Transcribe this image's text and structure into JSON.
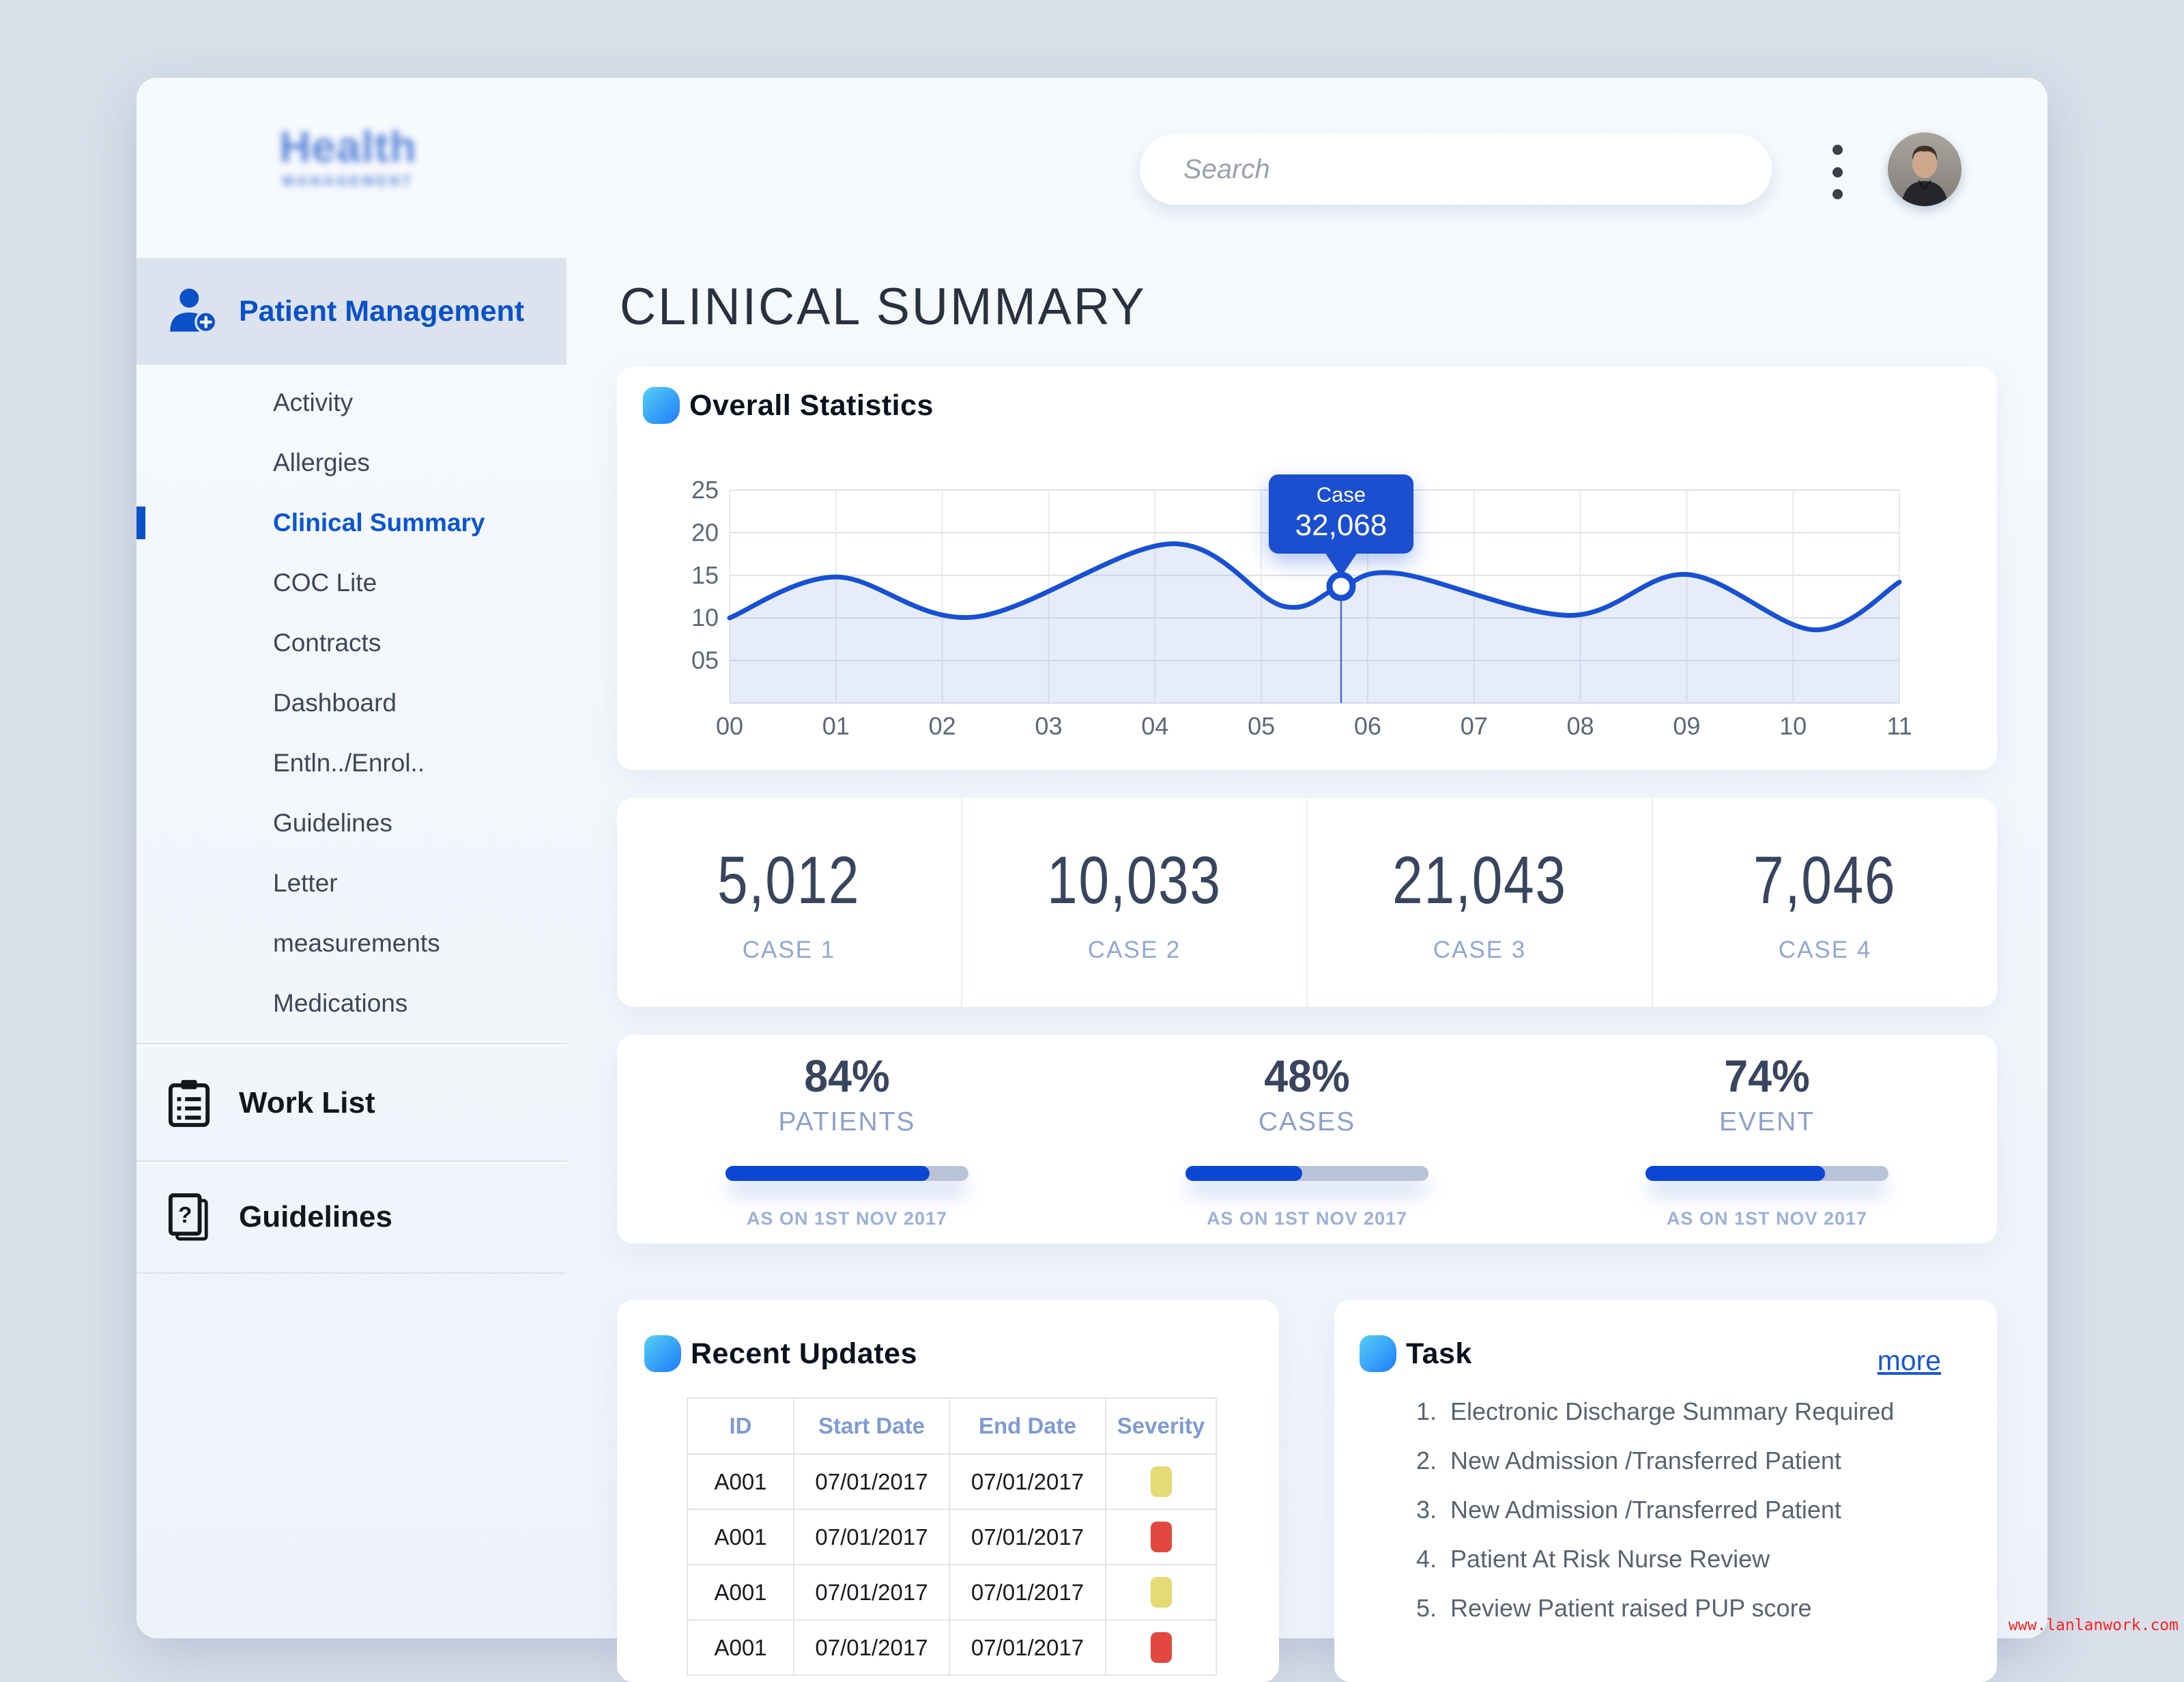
{
  "header": {
    "logo_line1": "Health",
    "logo_line2": "MANAGEMENT",
    "search_placeholder": "Search"
  },
  "sidebar": {
    "primary_label": "Patient Management",
    "items": [
      "Activity",
      "Allergies",
      "Clinical Summary",
      "COC Lite",
      "Contracts",
      "Dashboard",
      "Entln../Enrol..",
      "Guidelines",
      "Letter",
      "measurements",
      "Medications"
    ],
    "active_item": "Clinical Summary",
    "sections": [
      {
        "label": "Work List",
        "icon": "clipboard-icon"
      },
      {
        "label": "Guidelines",
        "icon": "document-question-icon"
      }
    ]
  },
  "page": {
    "title": "CLINICAL SUMMARY"
  },
  "overall_card": {
    "title": "Overall Statistics"
  },
  "chart_data": {
    "type": "line",
    "title": "Overall Statistics",
    "x_ticks": [
      "00",
      "01",
      "02",
      "03",
      "04",
      "05",
      "06",
      "07",
      "08",
      "09",
      "10",
      "11"
    ],
    "y_ticks": [
      "25",
      "20",
      "15",
      "10",
      "05"
    ],
    "xlim": [
      0,
      11
    ],
    "ylim": [
      0,
      25
    ],
    "grid": true,
    "series": [
      {
        "name": "Case",
        "points": [
          [
            0,
            10
          ],
          [
            1,
            14.8
          ],
          [
            2.3,
            10.1
          ],
          [
            4.15,
            18.7
          ],
          [
            5.2,
            11.4
          ],
          [
            5.75,
            13.7
          ],
          [
            6.3,
            15.2
          ],
          [
            7.9,
            10.3
          ],
          [
            9,
            15.1
          ],
          [
            10.2,
            8.6
          ],
          [
            11,
            14.2
          ]
        ]
      }
    ],
    "tooltip": {
      "x": 5.75,
      "y": 13.7,
      "label": "Case",
      "value": "32,068"
    },
    "line_color": "#1750d2",
    "fill_color": "rgba(121,152,226,0.18)"
  },
  "stats": [
    {
      "value": "5,012",
      "label": "CASE 1"
    },
    {
      "value": "10,033",
      "label": "CASE 2"
    },
    {
      "value": "21,043",
      "label": "CASE 3"
    },
    {
      "value": "7,046",
      "label": "CASE 4"
    }
  ],
  "percents": [
    {
      "value": "84%",
      "percent": 84,
      "label": "PATIENTS",
      "as_on": "AS ON 1ST NOV 2017"
    },
    {
      "value": "48%",
      "percent": 48,
      "label": "CASES",
      "as_on": "AS ON 1ST NOV 2017"
    },
    {
      "value": "74%",
      "percent": 74,
      "label": "EVENT",
      "as_on": "AS ON 1ST NOV 2017"
    }
  ],
  "recent_updates": {
    "title": "Recent Updates",
    "columns": [
      "ID",
      "Start Date",
      "End Date",
      "Severity"
    ],
    "rows": [
      {
        "id": "A001",
        "start": "07/01/2017",
        "end": "07/01/2017",
        "severity": "yellow"
      },
      {
        "id": "A001",
        "start": "07/01/2017",
        "end": "07/01/2017",
        "severity": "red"
      },
      {
        "id": "A001",
        "start": "07/01/2017",
        "end": "07/01/2017",
        "severity": "yellow"
      },
      {
        "id": "A001",
        "start": "07/01/2017",
        "end": "07/01/2017",
        "severity": "red"
      }
    ]
  },
  "task_card": {
    "title": "Task",
    "more_label": "more",
    "items": [
      "Electronic Discharge Summary Required",
      "New Admission /Transferred Patient",
      "New Admission /Transferred Patient",
      "Patient At Risk Nurse Review",
      "Review Patient raised PUP score"
    ]
  },
  "watermark": "www.lanlanwork.com",
  "colors": {
    "accent_blue": "#0b51c7",
    "tooltip_blue": "#1b4fd0",
    "progress_blue": "#0c46d4",
    "progress_track": "#b9c3d8",
    "severity_yellow": "#e5da74",
    "severity_red": "#e2483f",
    "label_blue_gray": "#92a8d2"
  }
}
